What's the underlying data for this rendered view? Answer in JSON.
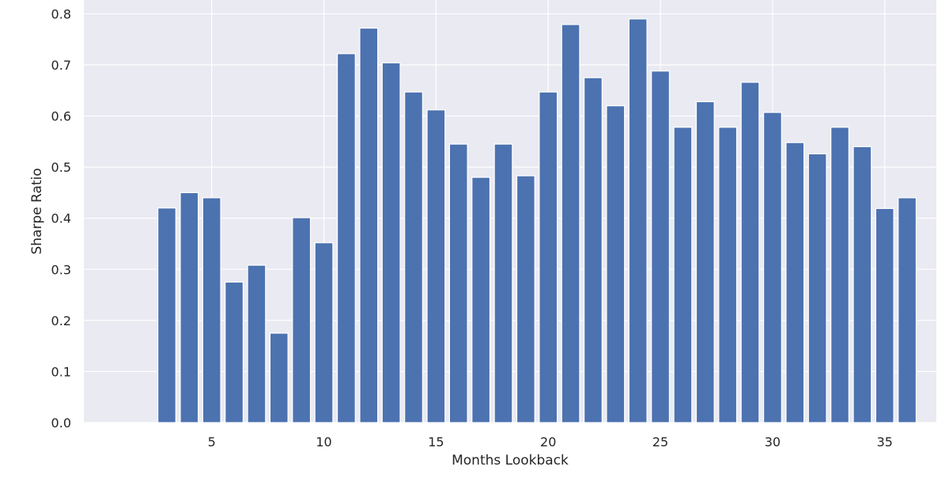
{
  "chart_data": {
    "type": "bar",
    "title": "",
    "xlabel": "Months Lookback",
    "ylabel": "Sharpe Ratio",
    "x": [
      3,
      4,
      5,
      6,
      7,
      8,
      9,
      10,
      11,
      12,
      13,
      14,
      15,
      16,
      17,
      18,
      19,
      20,
      21,
      22,
      23,
      24,
      25,
      26,
      27,
      28,
      29,
      30,
      31,
      32,
      33,
      34,
      35,
      36
    ],
    "values": [
      0.42,
      0.45,
      0.44,
      0.275,
      0.308,
      0.175,
      0.401,
      0.352,
      0.722,
      0.772,
      0.704,
      0.647,
      0.612,
      0.545,
      0.48,
      0.545,
      0.483,
      0.647,
      0.779,
      0.675,
      0.62,
      0.79,
      0.688,
      0.578,
      0.628,
      0.578,
      0.666,
      0.607,
      0.548,
      0.526,
      0.578,
      0.54,
      0.419,
      0.44
    ],
    "xlim": [
      -0.7,
      37.3
    ],
    "ylim": [
      0,
      0.827
    ],
    "xticks": [
      5,
      10,
      15,
      20,
      25,
      30,
      35
    ],
    "xtick_labels": [
      "5",
      "10",
      "15",
      "20",
      "25",
      "30",
      "35"
    ],
    "yticks": [
      0,
      0.1,
      0.2,
      0.3,
      0.4,
      0.5,
      0.6,
      0.7,
      0.8
    ],
    "ytick_labels": [
      "0.0",
      "0.1",
      "0.2",
      "0.3",
      "0.4",
      "0.5",
      "0.6",
      "0.7",
      "0.8"
    ],
    "grid": true,
    "colors": {
      "bar": "#4c72b0",
      "background": "#eaeaf2",
      "grid": "#ffffff"
    }
  }
}
